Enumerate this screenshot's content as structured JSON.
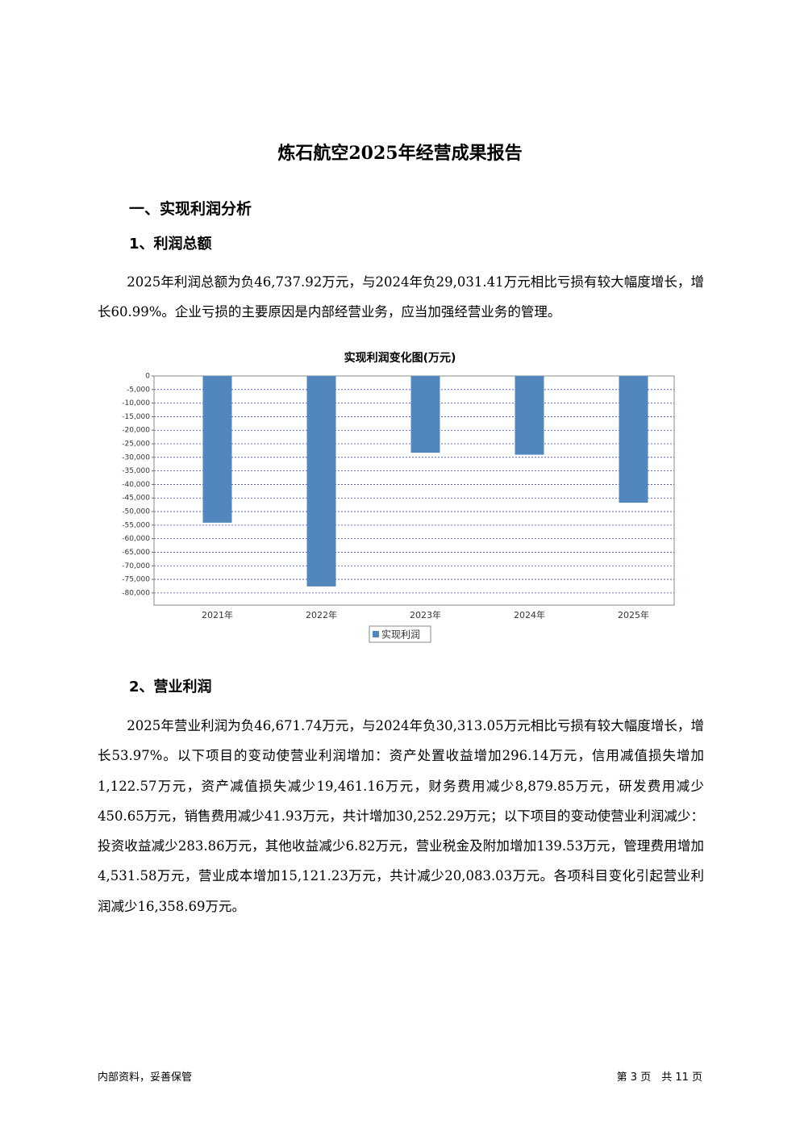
{
  "header": {
    "title": "炼石航空2025年经营成果报告"
  },
  "sections": [
    {
      "heading": "一、实现利润分析",
      "subsections": [
        {
          "heading": "1、利润总额",
          "paragraph": "2025年利润总额为负46,737.92万元，与2024年负29,031.41万元相比亏损有较大幅度增长，增长60.99%。企业亏损的主要原因是内部经营业务，应当加强经营业务的管理。"
        },
        {
          "heading": "2、营业利润",
          "paragraph": "2025年营业利润为负46,671.74万元，与2024年负30,313.05万元相比亏损有较大幅度增长，增长53.97%。以下项目的变动使营业利润增加：资产处置收益增加296.14万元，信用减值损失增加1,122.57万元，资产减值损失减少19,461.16万元，财务费用减少8,879.85万元，研发费用减少450.65万元，销售费用减少41.93万元，共计增加30,252.29万元；以下项目的变动使营业利润减少：投资收益减少283.86万元，其他收益减少6.82万元，营业税金及附加增加139.53万元，管理费用增加4,531.58万元，营业成本增加15,121.23万元，共计减少20,083.03万元。各项科目变化引起营业利润减少16,358.69万元。"
        }
      ]
    }
  ],
  "chart_data": {
    "type": "bar",
    "title": "实现利润变化图(万元)",
    "categories": [
      "2021年",
      "2022年",
      "2023年",
      "2024年",
      "2025年"
    ],
    "series": [
      {
        "name": "实现利润",
        "color": "#5287bd",
        "values": [
          -54100,
          -77600,
          -28300,
          -29031.41,
          -46737.92
        ]
      }
    ],
    "ylim": [
      -84500,
      0
    ],
    "yticks": [
      0,
      {
        "value": -5000,
        "label": "-5,000"
      },
      {
        "value": -10000,
        "label": "-10,000"
      },
      {
        "value": -15000,
        "label": "-15,000"
      },
      {
        "value": -20000,
        "label": "-20,000"
      },
      {
        "value": -25000,
        "label": "-25,000"
      },
      {
        "value": -30000,
        "label": "-30,000"
      },
      {
        "value": -35000,
        "label": "-35,000"
      },
      {
        "value": -40000,
        "label": "-40,000"
      },
      {
        "value": -45000,
        "label": "-45,000"
      },
      {
        "value": -50000,
        "label": "-50,000"
      },
      {
        "value": -55000,
        "label": "-55,000"
      },
      {
        "value": -60000,
        "label": "-60,000"
      },
      {
        "value": -65000,
        "label": "-65,000"
      },
      {
        "value": -70000,
        "label": "-70,000"
      },
      {
        "value": -75000,
        "label": "-75,000"
      },
      {
        "value": -80000,
        "label": "-80,000"
      }
    ],
    "grid": true,
    "legend": "bottom"
  },
  "footer": {
    "left": "内部资料，妥善保管",
    "right": "第 3 页　共 11 页"
  }
}
